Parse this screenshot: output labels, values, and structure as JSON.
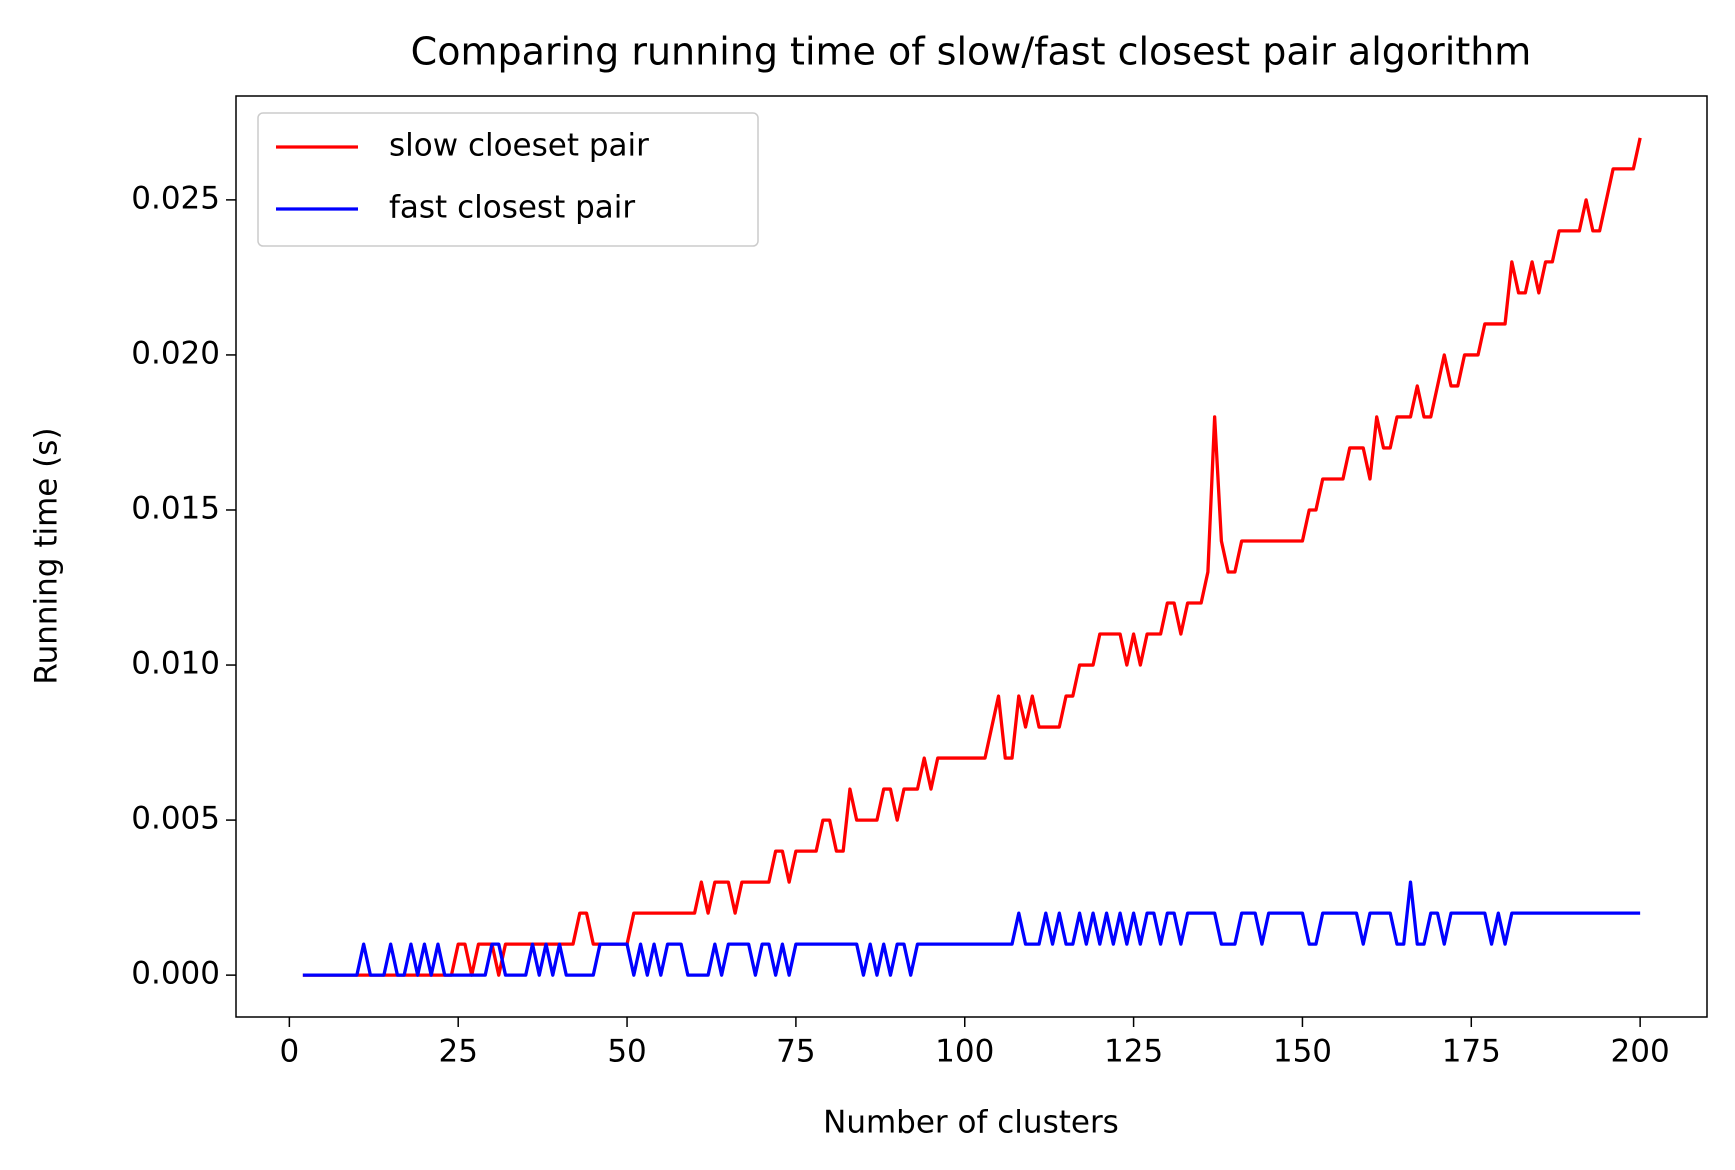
{
  "chart_data": {
    "type": "line",
    "title": "Comparing running time of slow/fast closest pair algorithm",
    "x_label": "Number of clusters",
    "y_label": "Running time (s)",
    "x": [
      2,
      3,
      4,
      5,
      6,
      7,
      8,
      9,
      10,
      11,
      12,
      13,
      14,
      15,
      16,
      17,
      18,
      19,
      20,
      21,
      22,
      23,
      24,
      25,
      26,
      27,
      28,
      29,
      30,
      31,
      32,
      33,
      34,
      35,
      36,
      37,
      38,
      39,
      40,
      41,
      42,
      43,
      44,
      45,
      46,
      47,
      48,
      49,
      50,
      51,
      52,
      53,
      54,
      55,
      56,
      57,
      58,
      59,
      60,
      61,
      62,
      63,
      64,
      65,
      66,
      67,
      68,
      69,
      70,
      71,
      72,
      73,
      74,
      75,
      76,
      77,
      78,
      79,
      80,
      81,
      82,
      83,
      84,
      85,
      86,
      87,
      88,
      89,
      90,
      91,
      92,
      93,
      94,
      95,
      96,
      97,
      98,
      99,
      100,
      101,
      102,
      103,
      104,
      105,
      106,
      107,
      108,
      109,
      110,
      111,
      112,
      113,
      114,
      115,
      116,
      117,
      118,
      119,
      120,
      121,
      122,
      123,
      124,
      125,
      126,
      127,
      128,
      129,
      130,
      131,
      132,
      133,
      134,
      135,
      136,
      137,
      138,
      139,
      140,
      141,
      142,
      143,
      144,
      145,
      146,
      147,
      148,
      149,
      150,
      151,
      152,
      153,
      154,
      155,
      156,
      157,
      158,
      159,
      160,
      161,
      162,
      163,
      164,
      165,
      166,
      167,
      168,
      169,
      170,
      171,
      172,
      173,
      174,
      175,
      176,
      177,
      178,
      179,
      180,
      181,
      182,
      183,
      184,
      185,
      186,
      187,
      188,
      189,
      190,
      191,
      192,
      193,
      194,
      195,
      196,
      197,
      198,
      199,
      200
    ],
    "series": [
      {
        "name": "slow cloeset pair",
        "color": "#ff0000",
        "values": [
          0,
          0,
          0,
          0,
          0,
          0,
          0,
          0,
          0,
          0,
          0,
          0,
          0,
          0,
          0,
          0,
          0,
          0,
          0,
          0,
          0,
          0,
          0,
          0.001,
          0.001,
          0,
          0.001,
          0.001,
          0.001,
          0,
          0.001,
          0.001,
          0.001,
          0.001,
          0.001,
          0.001,
          0.001,
          0.001,
          0.001,
          0.001,
          0.001,
          0.002,
          0.002,
          0.001,
          0.001,
          0.001,
          0.001,
          0.001,
          0.001,
          0.002,
          0.002,
          0.002,
          0.002,
          0.002,
          0.002,
          0.002,
          0.002,
          0.002,
          0.002,
          0.003,
          0.002,
          0.003,
          0.003,
          0.003,
          0.002,
          0.003,
          0.003,
          0.003,
          0.003,
          0.003,
          0.004,
          0.004,
          0.003,
          0.004,
          0.004,
          0.004,
          0.004,
          0.005,
          0.005,
          0.004,
          0.004,
          0.006,
          0.005,
          0.005,
          0.005,
          0.005,
          0.006,
          0.006,
          0.005,
          0.006,
          0.006,
          0.006,
          0.007,
          0.006,
          0.007,
          0.007,
          0.007,
          0.007,
          0.007,
          0.007,
          0.007,
          0.007,
          0.008,
          0.009,
          0.007,
          0.007,
          0.009,
          0.008,
          0.009,
          0.008,
          0.008,
          0.008,
          0.008,
          0.009,
          0.009,
          0.01,
          0.01,
          0.01,
          0.011,
          0.011,
          0.011,
          0.011,
          0.01,
          0.011,
          0.01,
          0.011,
          0.011,
          0.011,
          0.012,
          0.012,
          0.011,
          0.012,
          0.012,
          0.012,
          0.013,
          0.018,
          0.014,
          0.013,
          0.013,
          0.014,
          0.014,
          0.014,
          0.014,
          0.014,
          0.014,
          0.014,
          0.014,
          0.014,
          0.014,
          0.015,
          0.015,
          0.016,
          0.016,
          0.016,
          0.016,
          0.017,
          0.017,
          0.017,
          0.016,
          0.018,
          0.017,
          0.017,
          0.018,
          0.018,
          0.018,
          0.019,
          0.018,
          0.018,
          0.019,
          0.02,
          0.019,
          0.019,
          0.02,
          0.02,
          0.02,
          0.021,
          0.021,
          0.021,
          0.021,
          0.023,
          0.022,
          0.022,
          0.023,
          0.022,
          0.023,
          0.023,
          0.024,
          0.024,
          0.024,
          0.024,
          0.025,
          0.024,
          0.024,
          0.025,
          0.026,
          0.026,
          0.026,
          0.026,
          0.027
        ]
      },
      {
        "name": "fast closest pair",
        "color": "#0000ff",
        "values": [
          0,
          0,
          0,
          0,
          0,
          0,
          0,
          0,
          0,
          0.001,
          0,
          0,
          0,
          0.001,
          0,
          0,
          0.001,
          0,
          0.001,
          0,
          0.001,
          0,
          0,
          0,
          0,
          0,
          0,
          0,
          0.001,
          0.001,
          0,
          0,
          0,
          0,
          0.001,
          0,
          0.001,
          0,
          0.001,
          0,
          0,
          0,
          0,
          0,
          0.001,
          0.001,
          0.001,
          0.001,
          0.001,
          0,
          0.001,
          0,
          0.001,
          0,
          0.001,
          0.001,
          0.001,
          0,
          0,
          0,
          0,
          0.001,
          0,
          0.001,
          0.001,
          0.001,
          0.001,
          0,
          0.001,
          0.001,
          0,
          0.001,
          0,
          0.001,
          0.001,
          0.001,
          0.001,
          0.001,
          0.001,
          0.001,
          0.001,
          0.001,
          0.001,
          0,
          0.001,
          0,
          0.001,
          0,
          0.001,
          0.001,
          0,
          0.001,
          0.001,
          0.001,
          0.001,
          0.001,
          0.001,
          0.001,
          0.001,
          0.001,
          0.001,
          0.001,
          0.001,
          0.001,
          0.001,
          0.001,
          0.002,
          0.001,
          0.001,
          0.001,
          0.002,
          0.001,
          0.002,
          0.001,
          0.001,
          0.002,
          0.001,
          0.002,
          0.001,
          0.002,
          0.001,
          0.002,
          0.001,
          0.002,
          0.001,
          0.002,
          0.002,
          0.001,
          0.002,
          0.002,
          0.001,
          0.002,
          0.002,
          0.002,
          0.002,
          0.002,
          0.001,
          0.001,
          0.001,
          0.002,
          0.002,
          0.002,
          0.001,
          0.002,
          0.002,
          0.002,
          0.002,
          0.002,
          0.002,
          0.001,
          0.001,
          0.002,
          0.002,
          0.002,
          0.002,
          0.002,
          0.002,
          0.001,
          0.002,
          0.002,
          0.002,
          0.002,
          0.001,
          0.001,
          0.003,
          0.001,
          0.001,
          0.002,
          0.002,
          0.001,
          0.002,
          0.002,
          0.002,
          0.002,
          0.002,
          0.002,
          0.001,
          0.002,
          0.001,
          0.002,
          0.002,
          0.002,
          0.002,
          0.002,
          0.002,
          0.002,
          0.002,
          0.002,
          0.002,
          0.002,
          0.002,
          0.002,
          0.002,
          0.002,
          0.002,
          0.002,
          0.002,
          0.002,
          0.002
        ]
      }
    ],
    "xlim": [
      -7.9,
      209.9
    ],
    "ylim": [
      -0.00135,
      0.02835
    ],
    "xticks": [
      0,
      25,
      50,
      75,
      100,
      125,
      150,
      175,
      200
    ],
    "yticks": [
      {
        "value": 0,
        "label": "0.000"
      },
      {
        "value": 0.005,
        "label": "0.005"
      },
      {
        "value": 0.01,
        "label": "0.010"
      },
      {
        "value": 0.015,
        "label": "0.015"
      },
      {
        "value": 0.02,
        "label": "0.020"
      },
      {
        "value": 0.025,
        "label": "0.025"
      }
    ],
    "legend": "upper left",
    "grid": false
  }
}
